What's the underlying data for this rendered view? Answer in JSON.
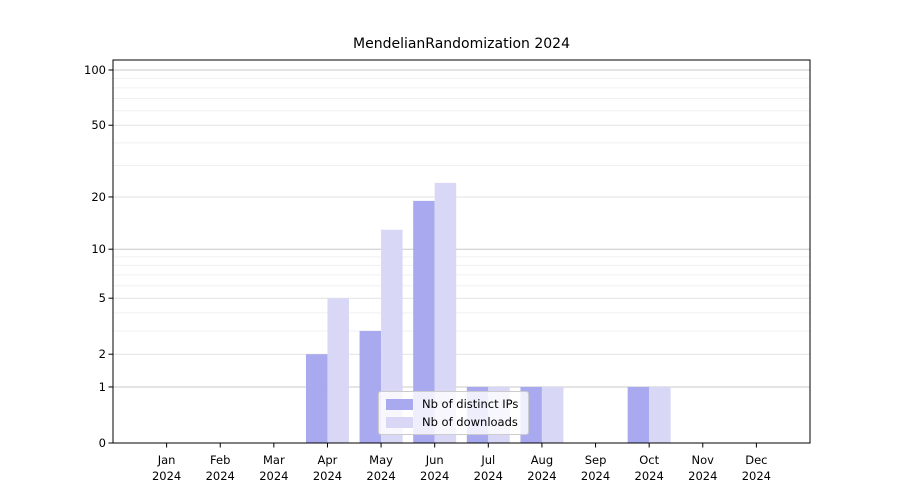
{
  "chart_data": {
    "type": "bar",
    "title": "MendelianRandomization 2024",
    "categories": [
      "Jan 2024",
      "Feb 2024",
      "Mar 2024",
      "Apr 2024",
      "May 2024",
      "Jun 2024",
      "Jul 2024",
      "Aug 2024",
      "Sep 2024",
      "Oct 2024",
      "Nov 2024",
      "Dec 2024"
    ],
    "series": [
      {
        "name": "Nb of distinct IPs",
        "color": "#a9a9ef",
        "values": [
          0,
          0,
          0,
          2,
          3,
          19,
          1,
          1,
          0,
          1,
          0,
          0
        ]
      },
      {
        "name": "Nb of downloads",
        "color": "#d8d8f6",
        "values": [
          0,
          0,
          0,
          5,
          13,
          24,
          1,
          1,
          0,
          1,
          0,
          0
        ]
      }
    ],
    "yscale": "log1p",
    "yticks": [
      0,
      1,
      2,
      5,
      10,
      20,
      50,
      100
    ],
    "minor_gridlines": [
      3,
      4,
      6,
      7,
      8,
      9,
      30,
      40,
      60,
      70,
      80,
      90
    ],
    "ylim": [
      0,
      113
    ],
    "xlabel": "",
    "ylabel": "",
    "grid": "horizontal",
    "legend_position": "bottom-center-inside"
  }
}
